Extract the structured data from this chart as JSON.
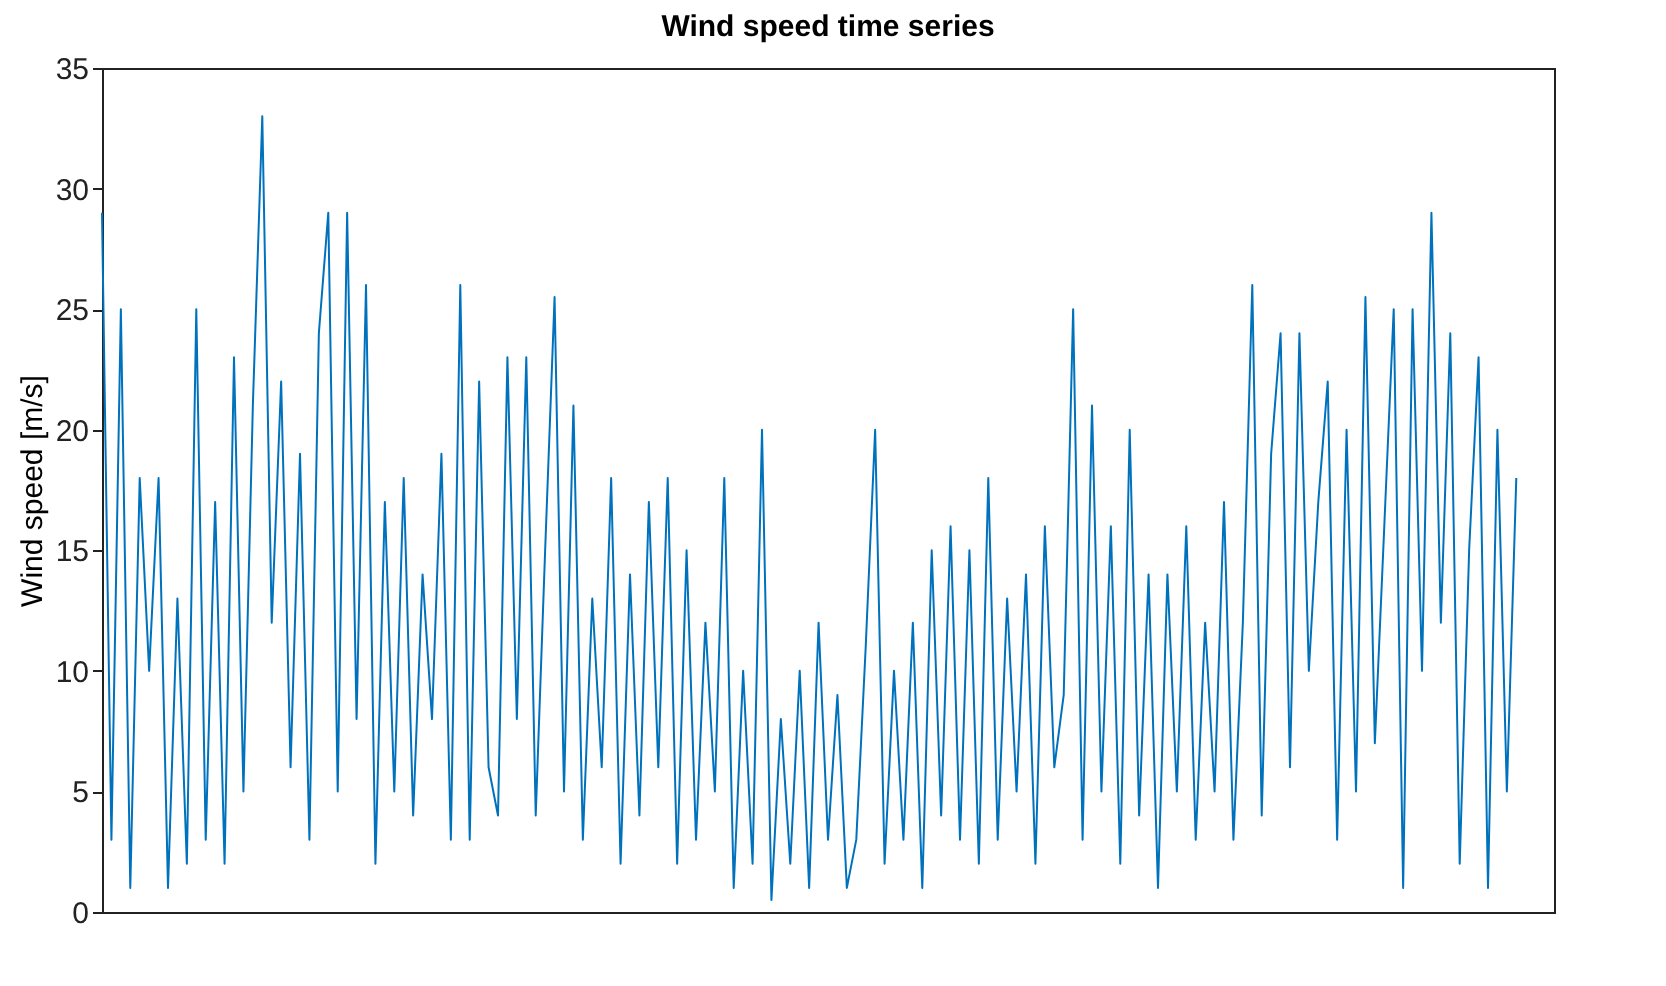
{
  "chart_data": {
    "type": "line",
    "title": "Wind speed time series",
    "ylabel": "Wind speed [m/s]",
    "categories": [
      null,
      null,
      null,
      null,
      null,
      null,
      null,
      null,
      null,
      null,
      null,
      null,
      null,
      null,
      null,
      null,
      null,
      null,
      null,
      null,
      null,
      null,
      null,
      null,
      null,
      null,
      null,
      null,
      null,
      null,
      null,
      null,
      null,
      null,
      null,
      null,
      null,
      null,
      null,
      null,
      null,
      null,
      null,
      null,
      null,
      null,
      null,
      null,
      null,
      null,
      null,
      null,
      null,
      null,
      null,
      null,
      null,
      null,
      null,
      null,
      null,
      null,
      null,
      null,
      null,
      null,
      null,
      null,
      null,
      null,
      null,
      null,
      null,
      null,
      null,
      null,
      null,
      null,
      null,
      null,
      null,
      null,
      null,
      null,
      null,
      null,
      null,
      null,
      null,
      null,
      null,
      null,
      null,
      null,
      null,
      null,
      null,
      null,
      null,
      null,
      null,
      null,
      null,
      null,
      null,
      null,
      null,
      null,
      null,
      null,
      null,
      null,
      null,
      null,
      null,
      null,
      null,
      null,
      null,
      null,
      null,
      null,
      null,
      null,
      null,
      null,
      null,
      null,
      null,
      null,
      null,
      null,
      null,
      null,
      null,
      null,
      null,
      null,
      null,
      null,
      null,
      null,
      null,
      null,
      null,
      null,
      null,
      null,
      null,
      null,
      null,
      null,
      null,
      null,
      null
    ],
    "series": [
      {
        "color": "#0072bd",
        "values": [
          29,
          3,
          25,
          1,
          18,
          10,
          18,
          1,
          13,
          2,
          25,
          3,
          17,
          2,
          23,
          5,
          21,
          33,
          12,
          22,
          6,
          19,
          3,
          24,
          29,
          5,
          29,
          8,
          26,
          2,
          17,
          5,
          18,
          4,
          14,
          8,
          19,
          3,
          26,
          3,
          22,
          6,
          4,
          23,
          8,
          23,
          4,
          15,
          25.5,
          5,
          21,
          3,
          13,
          6,
          18,
          2,
          14,
          4,
          17,
          6,
          18,
          2,
          15,
          3,
          12,
          5,
          18,
          1,
          10,
          2,
          20,
          0.5,
          8,
          2,
          10,
          1,
          12,
          3,
          9,
          1,
          3,
          11,
          20,
          2,
          10,
          3,
          12,
          1,
          15,
          4,
          16,
          3,
          15,
          2,
          18,
          3,
          13,
          5,
          14,
          2,
          16,
          6,
          9,
          25,
          3,
          21,
          5,
          16,
          2,
          20,
          4,
          14,
          1,
          14,
          5,
          16,
          3,
          12,
          5,
          17,
          3,
          12,
          26,
          4,
          19,
          24,
          6,
          24,
          10,
          17,
          22,
          3,
          20,
          5,
          25.5,
          7,
          16,
          25,
          1,
          25,
          10,
          29,
          12,
          24,
          2,
          15,
          23,
          1,
          20,
          5,
          18,
          null,
          null,
          null,
          null
        ]
      }
    ],
    "ylim": [
      0,
      35
    ],
    "yticks": [
      0,
      5,
      10,
      15,
      20,
      25,
      30,
      35
    ],
    "grid": false,
    "tick_labels": "y",
    "line_style": "solid",
    "marker": "none"
  }
}
